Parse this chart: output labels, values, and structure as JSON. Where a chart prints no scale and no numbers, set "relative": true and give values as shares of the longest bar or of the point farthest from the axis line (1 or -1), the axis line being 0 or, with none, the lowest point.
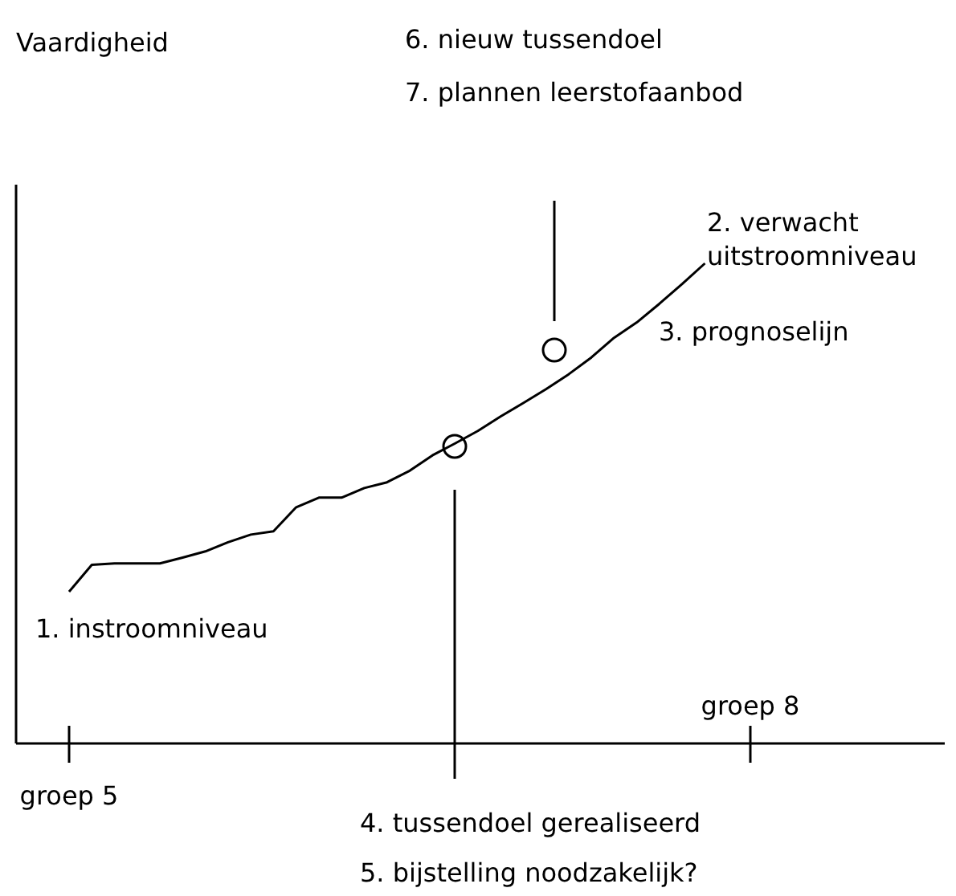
{
  "chart_data": {
    "type": "line",
    "relative": true,
    "grid": false,
    "categories": [
      "groep 5",
      null,
      null,
      null,
      null,
      null,
      null,
      null,
      null,
      null,
      null,
      null,
      null,
      null,
      null,
      null,
      null,
      null,
      null,
      null,
      null,
      null,
      null,
      null,
      null,
      null,
      null,
      null,
      null,
      null,
      "groep 8"
    ],
    "series": [
      {
        "color": "#000000",
        "line_style": "solid",
        "values": [
          0.316,
          0.372,
          0.375,
          0.375,
          0.375,
          0.387,
          0.4,
          0.419,
          0.435,
          0.442,
          0.492,
          0.512,
          0.512,
          0.532,
          0.544,
          0.568,
          0.6,
          0.625,
          0.651,
          0.681,
          0.709,
          0.738,
          0.769,
          0.804,
          0.845,
          0.877,
          0.916,
          0.957,
          1,
          null,
          null
        ]
      }
    ],
    "annotations": [
      "Vaardigheid",
      "1. instroomniveau",
      "2. verwacht uitstroomniveau",
      "3. prognoselijn",
      "4. tussendoel gerealiseerd",
      "5. bijstelling noodzakelijk?",
      "6. nieuw tussendoel",
      "7. plannen leerstofaanbod"
    ]
  }
}
